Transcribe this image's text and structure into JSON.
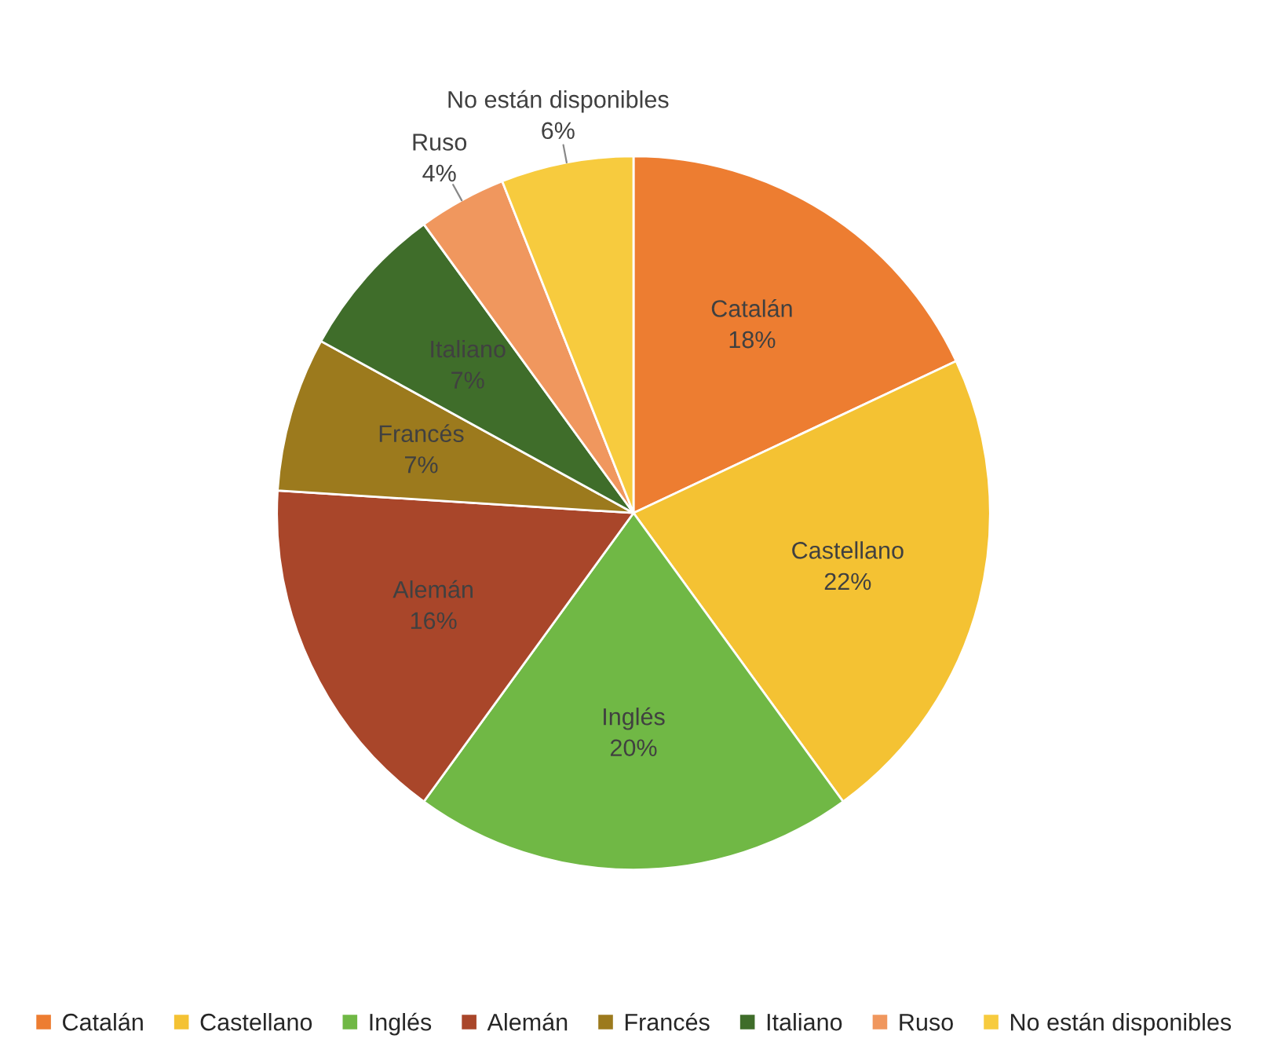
{
  "chart_data": {
    "type": "pie",
    "categories": [
      "Catalán",
      "Castellano",
      "Inglés",
      "Alemán",
      "Francés",
      "Italiano",
      "Ruso",
      "No están disponibles"
    ],
    "values": [
      18,
      22,
      20,
      16,
      7,
      7,
      4,
      6
    ],
    "value_labels": [
      "18%",
      "22%",
      "20%",
      "16%",
      "7%",
      "7%",
      "4%",
      "6%"
    ],
    "colors": [
      "#ed7d31",
      "#f4c233",
      "#70b845",
      "#a9462a",
      "#9c7a1d",
      "#3f6d2a",
      "#f0975e",
      "#f7cb3e"
    ],
    "legend": "bottom"
  }
}
